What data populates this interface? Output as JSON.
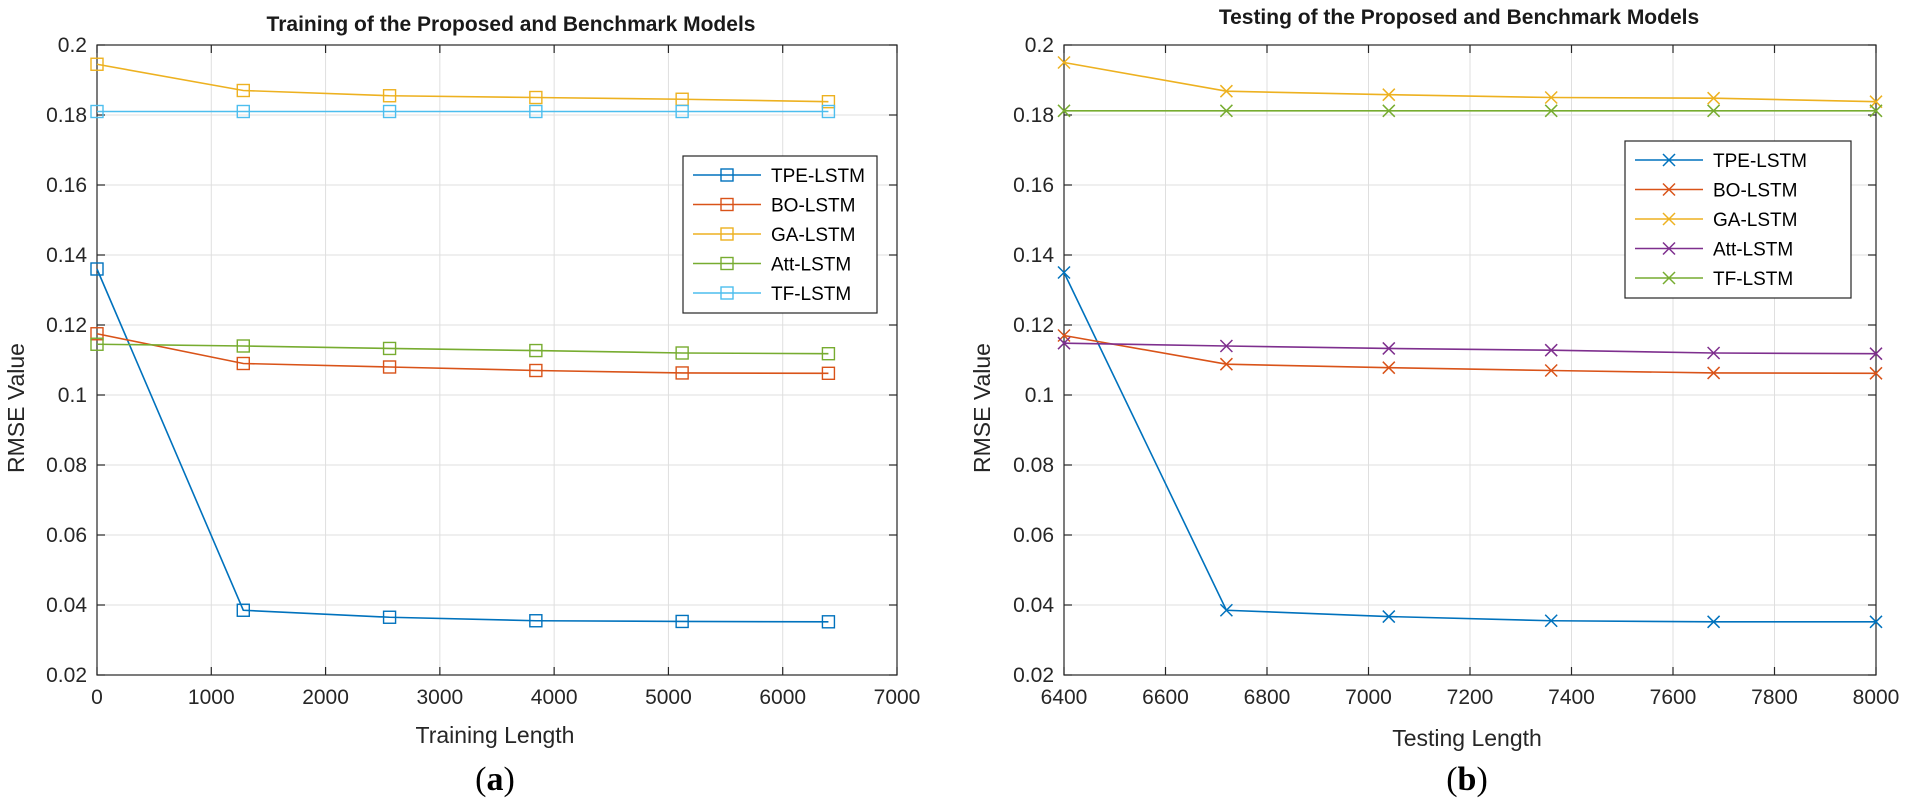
{
  "colors": {
    "blue": "#0072BD",
    "orange": "#D95319",
    "yellow": "#EDB120",
    "green": "#77AC30",
    "lightblue": "#4DBEEE",
    "purple": "#7E2F8E"
  },
  "chart_data": [
    {
      "type": "line",
      "title": "Training of the Proposed and Benchmark Models",
      "xlabel": "Training Length",
      "ylabel": "RMSE Value",
      "caption": "a",
      "marker": "square",
      "xlim": [
        0,
        7000
      ],
      "ylim": [
        0.02,
        0.2
      ],
      "xticks": [
        0,
        1000,
        2000,
        3000,
        4000,
        5000,
        6000,
        7000
      ],
      "xtick_labels": [
        "0",
        "1000",
        "2000",
        "3000",
        "4000",
        "5000",
        "6000",
        "7000"
      ],
      "yticks": [
        0.02,
        0.04,
        0.06,
        0.08,
        0.1,
        0.12,
        0.14,
        0.16,
        0.18,
        0.2
      ],
      "ytick_labels": [
        "0.02",
        "0.04",
        "0.06",
        "0.08",
        "0.1",
        "0.12",
        "0.14",
        "0.16",
        "0.18",
        "0.2"
      ],
      "grid": true,
      "legend_position": "right-upper",
      "x": [
        0,
        1280,
        2560,
        3840,
        5120,
        6400
      ],
      "series": [
        {
          "name": "TPE-LSTM",
          "color": "blue",
          "values": [
            0.136,
            0.0385,
            0.0365,
            0.0355,
            0.0353,
            0.0352
          ]
        },
        {
          "name": "BO-LSTM",
          "color": "orange",
          "values": [
            0.1175,
            0.109,
            0.108,
            0.107,
            0.1063,
            0.1062
          ]
        },
        {
          "name": "GA-LSTM",
          "color": "yellow",
          "values": [
            0.1945,
            0.187,
            0.1855,
            0.185,
            0.1845,
            0.1838
          ]
        },
        {
          "name": "Att-LSTM",
          "color": "green",
          "values": [
            0.1145,
            0.114,
            0.1133,
            0.1127,
            0.112,
            0.1118
          ]
        },
        {
          "name": "TF-LSTM",
          "color": "lightblue",
          "values": [
            0.181,
            0.181,
            0.181,
            0.181,
            0.181,
            0.181
          ]
        }
      ]
    },
    {
      "type": "line",
      "title": "Testing of the Proposed and Benchmark Models",
      "xlabel": "Testing Length",
      "ylabel": "RMSE Value",
      "caption": "b",
      "marker": "x",
      "xlim": [
        6400,
        8000
      ],
      "ylim": [
        0.02,
        0.2
      ],
      "xticks": [
        6400,
        6600,
        6800,
        7000,
        7200,
        7400,
        7600,
        7800,
        8000
      ],
      "xtick_labels": [
        "6400",
        "6600",
        "6800",
        "7000",
        "7200",
        "7400",
        "7600",
        "7800",
        "8000"
      ],
      "yticks": [
        0.02,
        0.04,
        0.06,
        0.08,
        0.1,
        0.12,
        0.14,
        0.16,
        0.18,
        0.2
      ],
      "ytick_labels": [
        "0.02",
        "0.04",
        "0.06",
        "0.08",
        "0.1",
        "0.12",
        "0.14",
        "0.16",
        "0.18",
        "0.2"
      ],
      "grid": true,
      "legend_position": "right-upper",
      "x": [
        6400,
        6720,
        7040,
        7360,
        7680,
        8000
      ],
      "series": [
        {
          "name": "TPE-LSTM",
          "color": "blue",
          "values": [
            0.135,
            0.0385,
            0.0367,
            0.0355,
            0.0352,
            0.0352
          ]
        },
        {
          "name": "BO-LSTM",
          "color": "orange",
          "values": [
            0.117,
            0.1088,
            0.1078,
            0.107,
            0.1063,
            0.1062
          ]
        },
        {
          "name": "GA-LSTM",
          "color": "yellow",
          "values": [
            0.195,
            0.1868,
            0.1858,
            0.185,
            0.1848,
            0.1838
          ]
        },
        {
          "name": "Att-LSTM",
          "color": "purple",
          "values": [
            0.1148,
            0.114,
            0.1133,
            0.1128,
            0.112,
            0.1118
          ]
        },
        {
          "name": "TF-LSTM",
          "color": "green",
          "values": [
            0.1812,
            0.1812,
            0.1812,
            0.1812,
            0.1812,
            0.1812
          ]
        }
      ]
    }
  ]
}
